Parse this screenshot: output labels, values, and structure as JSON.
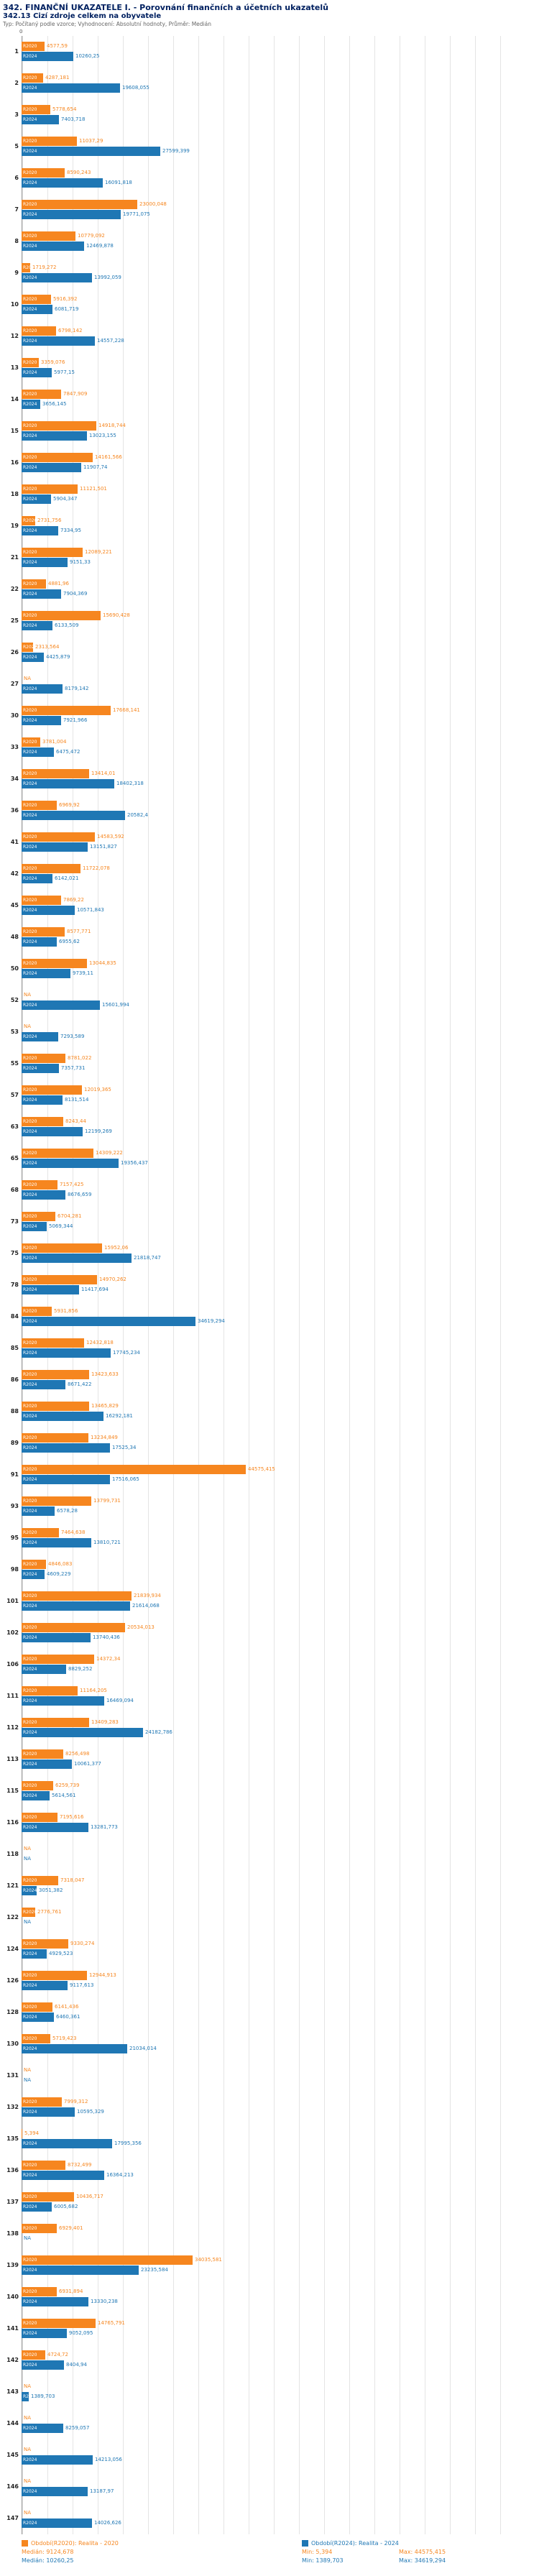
{
  "header": {
    "title": "342. FINANČNÍ UKAZATELE I. - Porovnání finančních a účetních ukazatelů",
    "subtitle": "342.13 Cizí zdroje celkem na obyvatele",
    "meta": "Typ: Počítaný podle vzorce; Vyhodnocení: Absolutní hodnoty, Průměr: Medián"
  },
  "axis_labels": {
    "zero": "0"
  },
  "chart_data": {
    "type": "bar",
    "orientation": "horizontal",
    "title": "342.13 Cizí zdroje celkem na obyvatele",
    "series": [
      {
        "key": "r2020",
        "name": "R2020",
        "color": "#f6861f"
      },
      {
        "key": "r2024",
        "name": "R2024",
        "color": "#1f77b4"
      }
    ],
    "axis": {
      "min": 0,
      "max": 100000,
      "grid_step": 5000
    },
    "na_label": "NA",
    "groups": [
      {
        "id": "1",
        "r2020": "4577,59",
        "r2024": "10260,25"
      },
      {
        "id": "2",
        "r2020": "4287,181",
        "r2024": "19608,055"
      },
      {
        "id": "3",
        "r2020": "5778,654",
        "r2024": "7403,718"
      },
      {
        "id": "5",
        "r2020": "11037,29",
        "r2024": "27599,399"
      },
      {
        "id": "6",
        "r2020": "8590,243",
        "r2024": "16091,818"
      },
      {
        "id": "7",
        "r2020": "23000,048",
        "r2024": "19771,075"
      },
      {
        "id": "8",
        "r2020": "10779,092",
        "r2024": "12469,878"
      },
      {
        "id": "9",
        "r2020": "1719,272",
        "r2024": "13992,059"
      },
      {
        "id": "10",
        "r2020": "5916,392",
        "r2024": "6081,719"
      },
      {
        "id": "12",
        "r2020": "6798,142",
        "r2024": "14557,228"
      },
      {
        "id": "13",
        "r2020": "3359,076",
        "r2024": "5977,15"
      },
      {
        "id": "14",
        "r2020": "7847,909",
        "r2024": "3656,145"
      },
      {
        "id": "15",
        "r2020": "14918,744",
        "r2024": "13023,155"
      },
      {
        "id": "16",
        "r2020": "14161,566",
        "r2024": "11907,74"
      },
      {
        "id": "18",
        "r2020": "11121,501",
        "r2024": "5904,347"
      },
      {
        "id": "19",
        "r2020": "2731,756",
        "r2024": "7334,95"
      },
      {
        "id": "21",
        "r2020": "12089,221",
        "r2024": "9151,33"
      },
      {
        "id": "22",
        "r2020": "4881,96",
        "r2024": "7904,369"
      },
      {
        "id": "25",
        "r2020": "15690,428",
        "r2024": "6133,509"
      },
      {
        "id": "26",
        "r2020": "2313,564",
        "r2024": "4425,879"
      },
      {
        "id": "27",
        "r2020": "NA",
        "r2024": "8179,142"
      },
      {
        "id": "30",
        "r2020": "17668,141",
        "r2024": "7921,966"
      },
      {
        "id": "33",
        "r2020": "3781,004",
        "r2024": "6475,472"
      },
      {
        "id": "34",
        "r2020": "13414,01",
        "r2024": "18402,318"
      },
      {
        "id": "36",
        "r2020": "6969,92",
        "r2024": "20582,4"
      },
      {
        "id": "41",
        "r2020": "14583,592",
        "r2024": "13151,827"
      },
      {
        "id": "42",
        "r2020": "11722,078",
        "r2024": "6142,021"
      },
      {
        "id": "45",
        "r2020": "7869,22",
        "r2024": "10571,843"
      },
      {
        "id": "48",
        "r2020": "8577,771",
        "r2024": "6955,62"
      },
      {
        "id": "50",
        "r2020": "13044,835",
        "r2024": "9739,11"
      },
      {
        "id": "52",
        "r2020": "NA",
        "r2024": "15601,994"
      },
      {
        "id": "53",
        "r2020": "NA",
        "r2024": "7293,589"
      },
      {
        "id": "55",
        "r2020": "8781,022",
        "r2024": "7357,731"
      },
      {
        "id": "57",
        "r2020": "12019,365",
        "r2024": "8131,514"
      },
      {
        "id": "63",
        "r2020": "8243,44",
        "r2024": "12199,269"
      },
      {
        "id": "65",
        "r2020": "14309,222",
        "r2024": "19356,437"
      },
      {
        "id": "68",
        "r2020": "7157,425",
        "r2024": "8676,659"
      },
      {
        "id": "73",
        "r2020": "6704,281",
        "r2024": "5069,344"
      },
      {
        "id": "75",
        "r2020": "15952,06",
        "r2024": "21818,747"
      },
      {
        "id": "78",
        "r2020": "14970,262",
        "r2024": "11417,694"
      },
      {
        "id": "84",
        "r2020": "5931,856",
        "r2024": "34619,294"
      },
      {
        "id": "85",
        "r2020": "12432,818",
        "r2024": "17745,234"
      },
      {
        "id": "86",
        "r2020": "13423,633",
        "r2024": "8671,422"
      },
      {
        "id": "88",
        "r2020": "13465,829",
        "r2024": "16292,181"
      },
      {
        "id": "89",
        "r2020": "13234,849",
        "r2024": "17525,34"
      },
      {
        "id": "91",
        "r2020": "44575,415",
        "r2024": "17516,065"
      },
      {
        "id": "93",
        "r2020": "13799,731",
        "r2024": "6578,28"
      },
      {
        "id": "95",
        "r2020": "7464,638",
        "r2024": "13810,721"
      },
      {
        "id": "98",
        "r2020": "4846,083",
        "r2024": "4609,229"
      },
      {
        "id": "101",
        "r2020": "21839,934",
        "r2024": "21614,068"
      },
      {
        "id": "102",
        "r2020": "20534,013",
        "r2024": "13740,436"
      },
      {
        "id": "106",
        "r2020": "14372,34",
        "r2024": "8829,252"
      },
      {
        "id": "111",
        "r2020": "11164,205",
        "r2024": "16469,094"
      },
      {
        "id": "112",
        "r2020": "13409,283",
        "r2024": "24182,786"
      },
      {
        "id": "113",
        "r2020": "8256,498",
        "r2024": "10061,377"
      },
      {
        "id": "115",
        "r2020": "6259,739",
        "r2024": "5614,561"
      },
      {
        "id": "116",
        "r2020": "7195,616",
        "r2024": "13281,773"
      },
      {
        "id": "118",
        "r2020": "NA",
        "r2024": "NA"
      },
      {
        "id": "121",
        "r2020": "7318,047",
        "r2024": "3051,382"
      },
      {
        "id": "122",
        "r2020": "2776,761",
        "r2024": "NA"
      },
      {
        "id": "124",
        "r2020": "9330,274",
        "r2024": "4929,523"
      },
      {
        "id": "126",
        "r2020": "12944,913",
        "r2024": "9117,613"
      },
      {
        "id": "128",
        "r2020": "6141,436",
        "r2024": "6460,361"
      },
      {
        "id": "130",
        "r2020": "5719,423",
        "r2024": "21034,014"
      },
      {
        "id": "131",
        "r2020": "NA",
        "r2024": "NA"
      },
      {
        "id": "132",
        "r2020": "7999,312",
        "r2024": "10595,329"
      },
      {
        "id": "135",
        "r2020": "5,394",
        "r2024": "17995,356"
      },
      {
        "id": "136",
        "r2020": "8732,499",
        "r2024": "16364,213"
      },
      {
        "id": "137",
        "r2020": "10436,717",
        "r2024": "6005,682"
      },
      {
        "id": "138",
        "r2020": "6929,401",
        "r2024": "NA"
      },
      {
        "id": "139",
        "r2020": "34035,581",
        "r2024": "23235,584"
      },
      {
        "id": "140",
        "r2020": "6931,894",
        "r2024": "13330,238"
      },
      {
        "id": "141",
        "r2020": "14765,791",
        "r2024": "9052,095"
      },
      {
        "id": "142",
        "r2020": "4724,72",
        "r2024": "8404,94"
      },
      {
        "id": "143",
        "r2020": "NA",
        "r2024": "1389,703"
      },
      {
        "id": "144",
        "r2020": "NA",
        "r2024": "8259,057"
      },
      {
        "id": "145",
        "r2020": "NA",
        "r2024": "14213,056"
      },
      {
        "id": "146",
        "r2020": "NA",
        "r2024": "13187,97"
      },
      {
        "id": "147",
        "r2020": "NA",
        "r2024": "14026,626"
      }
    ]
  },
  "footer": {
    "legend_2020": "Období(R2020): Realita - 2020",
    "legend_2024": "Období(R2024): Realita - 2024",
    "stats_2020": {
      "median": "Medián: 9124,678",
      "min": "Min: 5,394",
      "max": "Max: 44575,415"
    },
    "stats_2024": {
      "median": "Medián: 10260,25",
      "min": "Min: 1389,703",
      "max": "Max: 34619,294"
    }
  },
  "colors": {
    "bar_2020": "#f6861f",
    "bar_2024": "#1f77b4",
    "title": "#002060",
    "grid": "#e4e4e4"
  }
}
